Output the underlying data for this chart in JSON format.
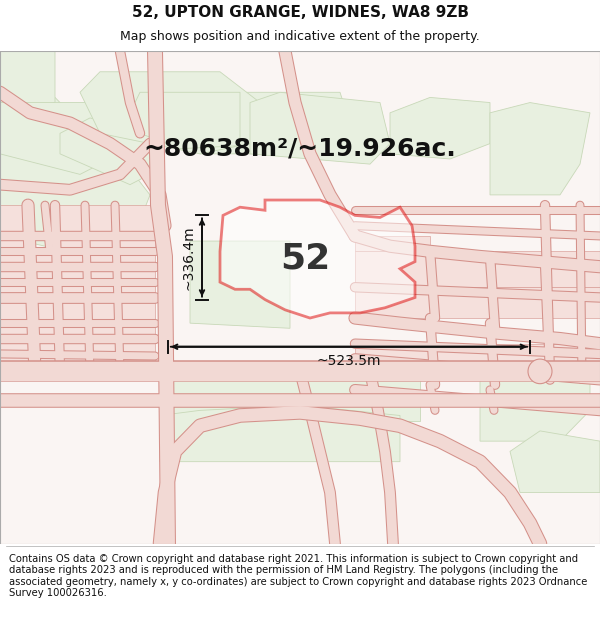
{
  "title_line1": "52, UPTON GRANGE, WIDNES, WA8 9ZB",
  "title_line2": "Map shows position and indicative extent of the property.",
  "footer_text": "Contains OS data © Crown copyright and database right 2021. This information is subject to Crown copyright and database rights 2023 and is reproduced with the permission of HM Land Registry. The polygons (including the associated geometry, namely x, y co-ordinates) are subject to Crown copyright and database rights 2023 Ordnance Survey 100026316.",
  "area_label": "~80638m²/~19.926ac.",
  "plot_number": "52",
  "dim_vertical": "~336.4m",
  "dim_horizontal": "~523.5m",
  "bg_color": "#ffffff",
  "map_bg": "#faf5f3",
  "road_fill": "#f2d9d4",
  "road_edge": "#d4918a",
  "green_fill": "#e8f0e0",
  "green_edge": "#c8d8b8",
  "plot_fill": "#ffffff",
  "plot_edge": "#dd0000",
  "plot_lw": 2.0,
  "dim_color": "#111111",
  "title_fs": 11,
  "subtitle_fs": 9,
  "footer_fs": 7.2,
  "area_fs": 18,
  "num_fs": 26,
  "dim_fs": 10
}
